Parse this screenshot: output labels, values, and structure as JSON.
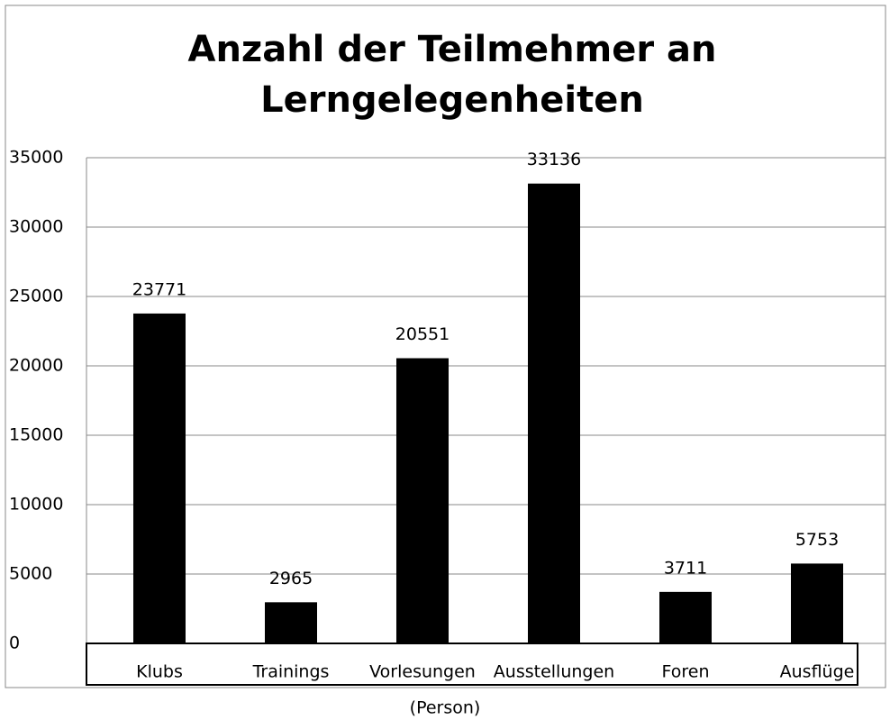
{
  "chart_data": {
    "type": "bar",
    "title": [
      "Anzahl der Teilmehmer an",
      "Lerngelegenheiten"
    ],
    "x_label": "(Person)",
    "categories": [
      "Klubs",
      "Trainings",
      "Vorlesungen",
      "Ausstellungen",
      "Foren",
      "Ausflüge"
    ],
    "values": [
      23771,
      2965,
      20551,
      33136,
      3711,
      5753
    ],
    "color": "#000000",
    "ylim": [
      0,
      35000
    ],
    "yticks": [
      0,
      5000,
      10000,
      15000,
      20000,
      25000,
      30000,
      35000
    ],
    "grid": true
  }
}
